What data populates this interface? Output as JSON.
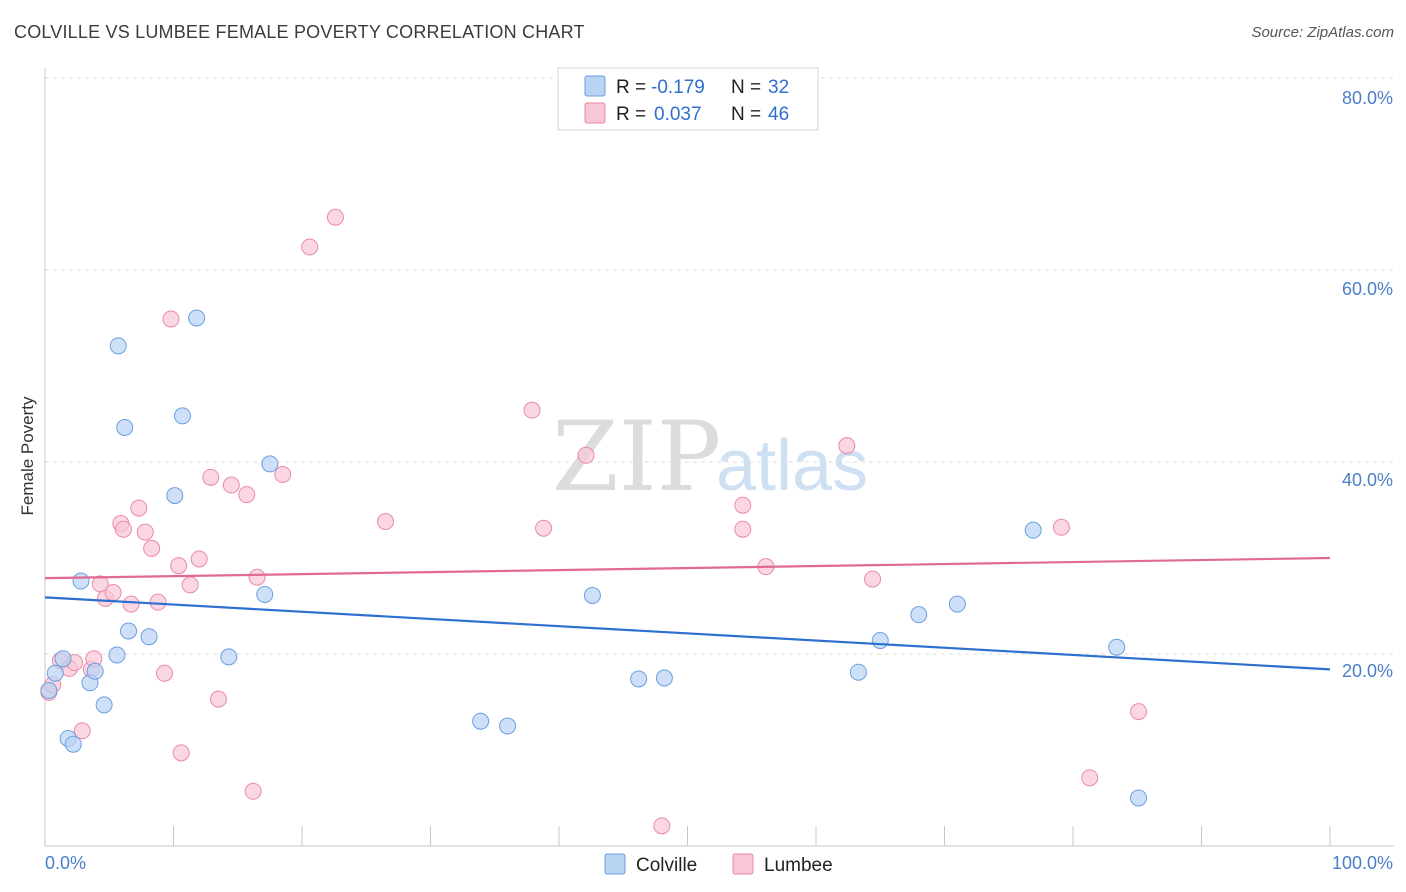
{
  "header": {
    "title": "COLVILLE VS LUMBEE FEMALE POVERTY CORRELATION CHART",
    "source": "Source: ZipAtlas.com"
  },
  "watermark": {
    "zip": "ZIP",
    "atlas": "atlas"
  },
  "legend": {
    "colville": {
      "r_label": "R =",
      "r_value": "-0.179",
      "n_label": "N =",
      "n_value": "32"
    },
    "lumbee": {
      "r_label": "R =",
      "r_value": "0.037",
      "n_label": "N =",
      "n_value": "46"
    }
  },
  "colors": {
    "colville_fill": "#b9d3f3",
    "colville_stroke": "#6a9fe0",
    "colville_line": "#2f6fcf",
    "lumbee_fill": "#f8c6d5",
    "lumbee_stroke": "#ea8aa9",
    "lumbee_line": "#e06a92",
    "axis_text": "#4a7fc8"
  },
  "chart_data": {
    "type": "scatter",
    "title": "COLVILLE VS LUMBEE FEMALE POVERTY CORRELATION CHART",
    "xlabel": "",
    "ylabel": "Female Poverty",
    "xlim": [
      0,
      100
    ],
    "ylim": [
      0,
      80
    ],
    "y_ticks": [
      "20.0%",
      "40.0%",
      "60.0%",
      "80.0%"
    ],
    "y_tick_values": [
      20,
      40,
      60,
      80
    ],
    "x_ticks": [
      "0.0%",
      "100.0%"
    ],
    "grid": "horizontal dashed",
    "legend_position": "top-center",
    "series": [
      {
        "name": "Colville",
        "trend": {
          "x": [
            0,
            100
          ],
          "y": [
            25.9,
            18.4
          ]
        },
        "points": [
          [
            0.3,
            16.2
          ],
          [
            0.8,
            18.0
          ],
          [
            1.4,
            19.5
          ],
          [
            1.8,
            11.2
          ],
          [
            2.2,
            10.6
          ],
          [
            2.8,
            27.6
          ],
          [
            3.5,
            17.0
          ],
          [
            3.9,
            18.2
          ],
          [
            4.6,
            14.7
          ],
          [
            5.6,
            19.9
          ],
          [
            5.7,
            52.1
          ],
          [
            6.2,
            43.6
          ],
          [
            6.5,
            22.4
          ],
          [
            8.1,
            21.8
          ],
          [
            10.1,
            36.5
          ],
          [
            10.7,
            44.8
          ],
          [
            11.8,
            55.0
          ],
          [
            14.3,
            19.7
          ],
          [
            17.1,
            26.2
          ],
          [
            17.5,
            39.8
          ],
          [
            33.9,
            13.0
          ],
          [
            36.0,
            12.5
          ],
          [
            42.6,
            26.1
          ],
          [
            46.2,
            17.4
          ],
          [
            48.2,
            17.5
          ],
          [
            63.3,
            18.1
          ],
          [
            65.0,
            21.4
          ],
          [
            68.0,
            24.1
          ],
          [
            71.0,
            25.2
          ],
          [
            76.9,
            32.9
          ],
          [
            83.4,
            20.7
          ],
          [
            85.1,
            5.0
          ]
        ]
      },
      {
        "name": "Lumbee",
        "trend": {
          "x": [
            0,
            100
          ],
          "y": [
            27.9,
            30.0
          ]
        },
        "points": [
          [
            0.3,
            16.0
          ],
          [
            0.6,
            16.8
          ],
          [
            1.2,
            19.3
          ],
          [
            1.9,
            18.5
          ],
          [
            2.3,
            19.1
          ],
          [
            2.9,
            12.0
          ],
          [
            3.6,
            18.4
          ],
          [
            3.8,
            19.5
          ],
          [
            4.3,
            27.3
          ],
          [
            4.7,
            25.8
          ],
          [
            5.3,
            26.4
          ],
          [
            5.9,
            33.6
          ],
          [
            6.1,
            33.0
          ],
          [
            6.7,
            25.2
          ],
          [
            7.3,
            35.2
          ],
          [
            7.8,
            32.7
          ],
          [
            8.3,
            31.0
          ],
          [
            8.8,
            25.4
          ],
          [
            9.3,
            18.0
          ],
          [
            9.8,
            54.9
          ],
          [
            10.4,
            29.2
          ],
          [
            10.6,
            9.7
          ],
          [
            11.3,
            27.2
          ],
          [
            12.0,
            29.9
          ],
          [
            12.9,
            38.4
          ],
          [
            13.5,
            15.3
          ],
          [
            14.5,
            37.6
          ],
          [
            15.7,
            36.6
          ],
          [
            16.2,
            5.7
          ],
          [
            16.5,
            28.0
          ],
          [
            18.5,
            38.7
          ],
          [
            20.6,
            62.4
          ],
          [
            22.6,
            65.5
          ],
          [
            26.5,
            33.8
          ],
          [
            37.9,
            45.4
          ],
          [
            38.8,
            33.1
          ],
          [
            42.1,
            40.7
          ],
          [
            48.0,
            2.1
          ],
          [
            54.3,
            35.5
          ],
          [
            54.3,
            33.0
          ],
          [
            56.1,
            29.1
          ],
          [
            62.4,
            41.7
          ],
          [
            64.4,
            27.8
          ],
          [
            79.1,
            33.2
          ],
          [
            81.3,
            7.1
          ],
          [
            85.1,
            14.0
          ]
        ]
      }
    ]
  }
}
